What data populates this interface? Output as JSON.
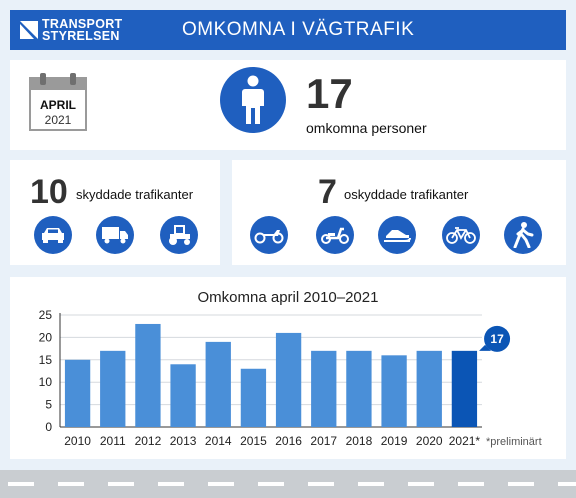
{
  "header": {
    "logo_line1": "TRANSPORT",
    "logo_line2": "STYRELSEN",
    "title": "OMKOMNA I VÄGTRAFIK"
  },
  "period": {
    "month": "APRIL",
    "year": "2021"
  },
  "total": {
    "count": "17",
    "label": "omkomna personer"
  },
  "protected": {
    "count": "10",
    "label": "skyddade trafikanter",
    "icons": [
      "car-icon",
      "truck-icon",
      "tractor-icon"
    ]
  },
  "unprotected": {
    "count": "7",
    "label": "oskyddade trafikanter",
    "icons": [
      "motorcycle-icon",
      "moped-icon",
      "snowmobile-icon",
      "bicycle-icon",
      "pedestrian-icon"
    ]
  },
  "chart_data": {
    "type": "bar",
    "title": "Omkomna april 2010–2021",
    "categories": [
      "2010",
      "2011",
      "2012",
      "2013",
      "2014",
      "2015",
      "2016",
      "2017",
      "2018",
      "2019",
      "2020",
      "2021*"
    ],
    "values": [
      15,
      17,
      23,
      14,
      19,
      13,
      21,
      17,
      17,
      16,
      17,
      17
    ],
    "ylim": [
      0,
      25
    ],
    "yticks": [
      0,
      5,
      10,
      15,
      20,
      25
    ],
    "grid": true,
    "highlight_label": "17",
    "note": "*preliminärt",
    "colors": {
      "bar": "#4a8fd8",
      "highlight": "#0b55b5",
      "grid": "#d5d9de"
    }
  }
}
